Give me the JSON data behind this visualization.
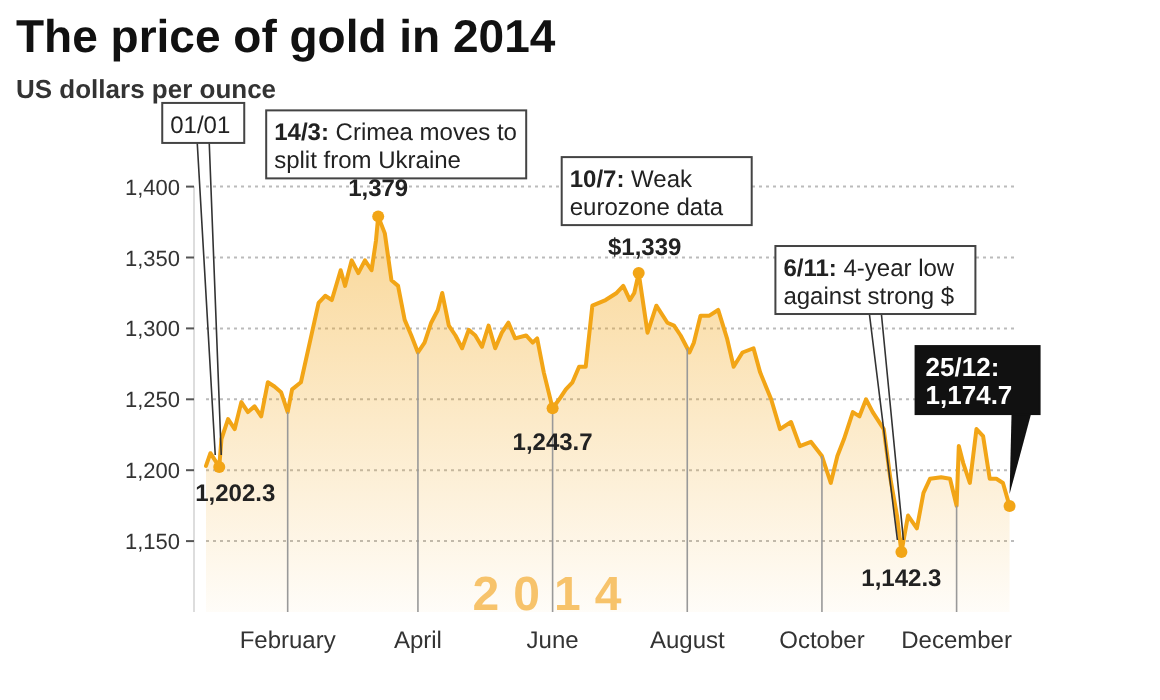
{
  "chart_data": {
    "type": "area",
    "title": "The price of gold in 2014",
    "subtitle": "US dollars per ounce",
    "x": [
      "2013-12-26",
      "2013-12-28",
      "2014-01-01",
      "2014-01-02",
      "2014-01-05",
      "2014-01-08",
      "2014-01-11",
      "2014-01-14",
      "2014-01-17",
      "2014-01-20",
      "2014-01-23",
      "2014-01-26",
      "2014-01-29",
      "2014-02-01",
      "2014-02-03",
      "2014-02-07",
      "2014-02-12",
      "2014-02-15",
      "2014-02-18",
      "2014-02-21",
      "2014-02-25",
      "2014-02-27",
      "2014-03-02",
      "2014-03-05",
      "2014-03-08",
      "2014-03-11",
      "2014-03-13",
      "2014-03-14",
      "2014-03-17",
      "2014-03-20",
      "2014-03-23",
      "2014-03-26",
      "2014-03-29",
      "2014-04-01",
      "2014-04-04",
      "2014-04-07",
      "2014-04-10",
      "2014-04-12",
      "2014-04-15",
      "2014-04-18",
      "2014-04-21",
      "2014-04-24",
      "2014-04-27",
      "2014-04-30",
      "2014-05-03",
      "2014-05-06",
      "2014-05-09",
      "2014-05-12",
      "2014-05-15",
      "2014-05-20",
      "2014-05-23",
      "2014-05-25",
      "2014-05-28",
      "2014-06-01",
      "2014-06-04",
      "2014-06-07",
      "2014-06-10",
      "2014-06-13",
      "2014-06-16",
      "2014-06-19",
      "2014-06-22",
      "2014-06-25",
      "2014-06-30",
      "2014-07-03",
      "2014-07-06",
      "2014-07-08",
      "2014-07-10",
      "2014-07-14",
      "2014-07-18",
      "2014-07-23",
      "2014-07-26",
      "2014-07-29",
      "2014-08-02",
      "2014-08-04",
      "2014-08-07",
      "2014-08-11",
      "2014-08-15",
      "2014-08-19",
      "2014-08-22",
      "2014-08-26",
      "2014-08-31",
      "2014-09-03",
      "2014-09-08",
      "2014-09-12",
      "2014-09-17",
      "2014-09-21",
      "2014-09-26",
      "2014-10-01",
      "2014-10-05",
      "2014-10-08",
      "2014-10-11",
      "2014-10-15",
      "2014-10-18",
      "2014-10-21",
      "2014-10-24",
      "2014-10-29",
      "2014-11-01",
      "2014-11-04",
      "2014-11-06",
      "2014-11-09",
      "2014-11-13",
      "2014-11-16",
      "2014-11-19",
      "2014-11-24",
      "2014-11-28",
      "2014-12-01",
      "2014-12-02",
      "2014-12-04",
      "2014-12-07",
      "2014-12-10",
      "2014-12-13",
      "2014-12-16",
      "2014-12-19",
      "2014-12-22",
      "2014-12-25"
    ],
    "series": [
      {
        "color": "#f2a516",
        "values": [
          1203,
          1212,
          1202.3,
          1222,
          1236,
          1229,
          1248,
          1241,
          1245,
          1238,
          1262,
          1259,
          1255,
          1241,
          1257,
          1262,
          1297,
          1318,
          1323,
          1320,
          1341,
          1330,
          1348,
          1339,
          1348,
          1341,
          1362,
          1379,
          1367,
          1334,
          1330,
          1306,
          1295,
          1283,
          1290,
          1304,
          1313,
          1325,
          1302,
          1295,
          1286,
          1299,
          1295,
          1287,
          1302,
          1286,
          1297,
          1304,
          1293,
          1295,
          1290,
          1293,
          1269,
          1243.7,
          1250,
          1257,
          1262,
          1273,
          1273,
          1316,
          1318,
          1320,
          1325,
          1330,
          1320,
          1325,
          1339,
          1297,
          1316,
          1304,
          1302,
          1295,
          1283,
          1290,
          1309,
          1309,
          1313,
          1293,
          1273,
          1283,
          1286,
          1269,
          1250,
          1229,
          1234,
          1217,
          1220,
          1210,
          1191,
          1210,
          1222,
          1241,
          1238,
          1250,
          1241,
          1229,
          1194,
          1168,
          1142.3,
          1168,
          1159,
          1184,
          1194,
          1195,
          1194,
          1175,
          1217,
          1205,
          1191,
          1229,
          1224,
          1194,
          1194,
          1191,
          1174.7
        ]
      }
    ],
    "xlim": [
      "2013-12-26",
      "2014-12-27"
    ],
    "xticks": [
      {
        "value": "2014-02-01",
        "label": "February"
      },
      {
        "value": "2014-04-01",
        "label": "April"
      },
      {
        "value": "2014-06-01",
        "label": "June"
      },
      {
        "value": "2014-08-01",
        "label": "August"
      },
      {
        "value": "2014-10-01",
        "label": "October"
      },
      {
        "value": "2014-12-01",
        "label": "December"
      }
    ],
    "ylim": [
      1100,
      1400
    ],
    "yticks": [
      {
        "value": 1150,
        "label": "1,150"
      },
      {
        "value": 1200,
        "label": "1,200"
      },
      {
        "value": 1250,
        "label": "1,250"
      },
      {
        "value": 1300,
        "label": "1,300"
      },
      {
        "value": 1350,
        "label": "1,350"
      },
      {
        "value": 1400,
        "label": "1,400"
      }
    ],
    "grid": "y",
    "ref_lines": [
      {
        "axis": "x",
        "value": "2014-02-01",
        "color": "#999999"
      },
      {
        "axis": "x",
        "value": "2014-04-01",
        "color": "#999999"
      },
      {
        "axis": "x",
        "value": "2014-06-01",
        "color": "#999999"
      },
      {
        "axis": "x",
        "value": "2014-08-01",
        "color": "#999999"
      },
      {
        "axis": "x",
        "value": "2014-10-01",
        "color": "#999999"
      },
      {
        "axis": "x",
        "value": "2014-12-01",
        "color": "#999999"
      }
    ],
    "annotations": [
      {
        "text": "01/01",
        "x": "2014-01-01",
        "y": 1202.3
      },
      {
        "text": "1,202.3",
        "x": "2014-01-01",
        "y": 1202.3
      },
      {
        "text": "14/3: Crimea moves to split from Ukraine",
        "x": "2014-03-14",
        "y": 1379
      },
      {
        "text": "1,379",
        "x": "2014-03-14",
        "y": 1379
      },
      {
        "text": "10/7: Weak eurozone data",
        "x": "2014-07-10",
        "y": 1339
      },
      {
        "text": "$1,339",
        "x": "2014-07-10",
        "y": 1339
      },
      {
        "text": "1,243.7",
        "x": "2014-06-01",
        "y": 1243.7
      },
      {
        "text": "6/11: 4-year low against strong $",
        "x": "2014-11-06",
        "y": 1142.3
      },
      {
        "text": "1,142.3",
        "x": "2014-11-06",
        "y": 1142.3
      },
      {
        "text": "25/12: 1,174.7",
        "x": "2014-12-25",
        "y": 1174.7
      },
      "2014"
    ]
  }
}
